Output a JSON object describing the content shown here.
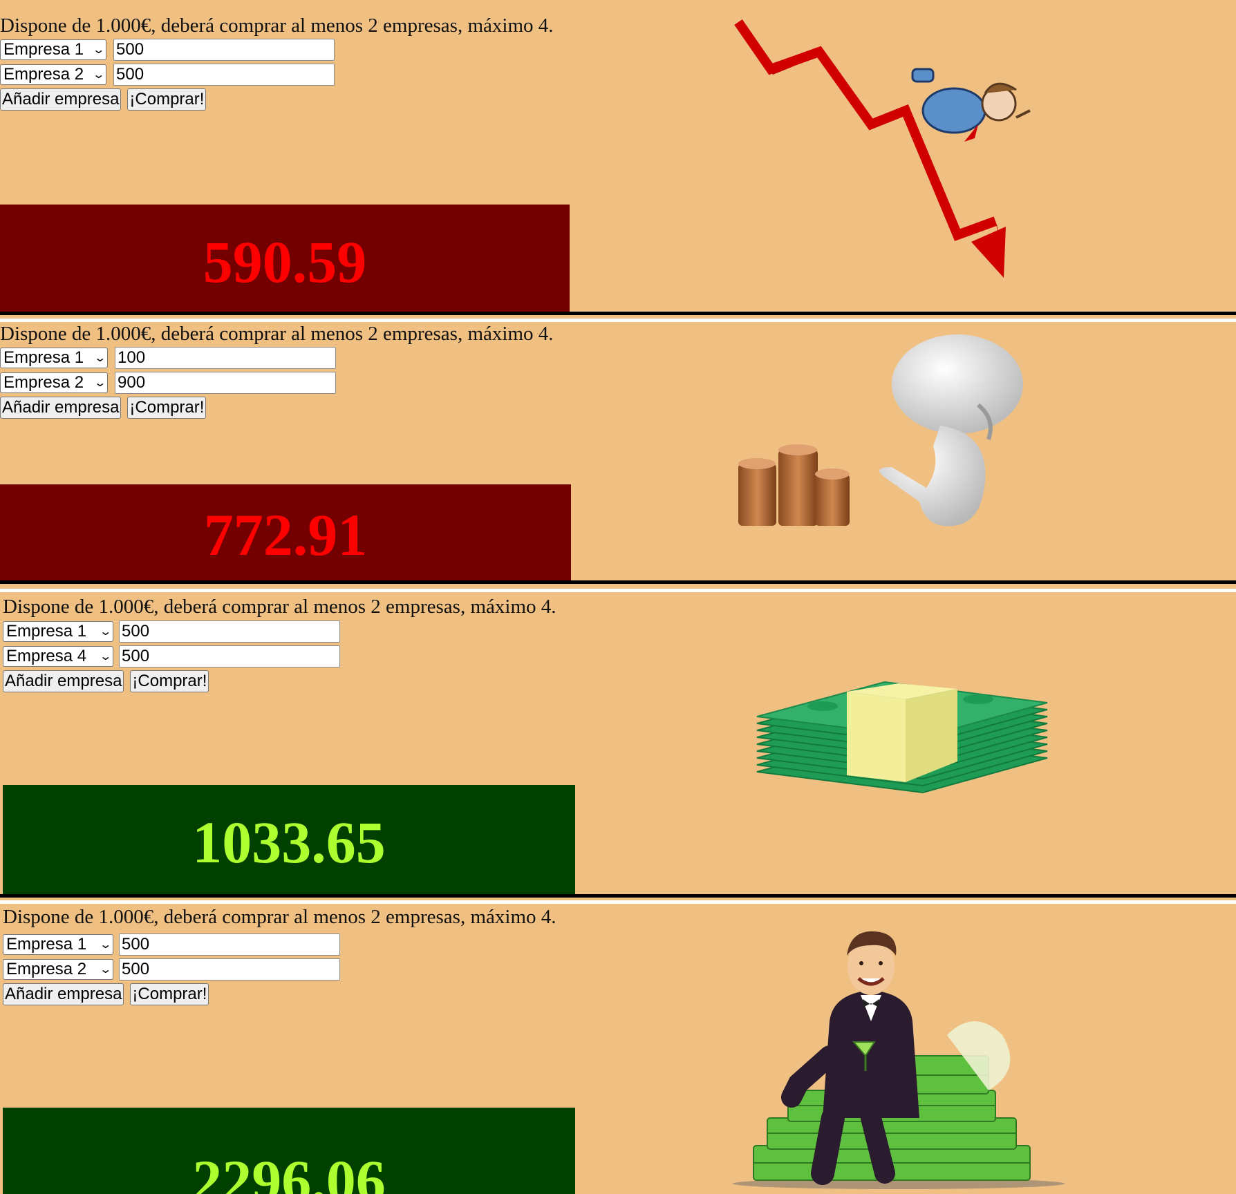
{
  "intro_text": "Dispone de 1.000€, deberá comprar al menos 2 empresas, máximo 4.",
  "add_button_label": "Añadir empresa",
  "buy_button_label": "¡Comprar!",
  "colors": {
    "page_background": "#f0c083",
    "loss_box": "#730000",
    "loss_text": "#ff0000",
    "gain_box": "#004000",
    "gain_text": "#adff2f"
  },
  "panels": [
    {
      "selections": [
        {
          "company": "Empresa 1",
          "amount": "500"
        },
        {
          "company": "Empresa 2",
          "amount": "500"
        }
      ],
      "result": "590.59",
      "outcome": "loss",
      "illustration": "falling-chart-man-icon"
    },
    {
      "selections": [
        {
          "company": "Empresa 1",
          "amount": "100"
        },
        {
          "company": "Empresa 2",
          "amount": "900"
        }
      ],
      "result": "772.91",
      "outcome": "loss",
      "illustration": "coins-thinking-figure-icon"
    },
    {
      "selections": [
        {
          "company": "Empresa 1",
          "amount": "500"
        },
        {
          "company": "Empresa 4",
          "amount": "500"
        }
      ],
      "result": "1033.65",
      "outcome": "gain",
      "illustration": "money-stack-icon"
    },
    {
      "selections": [
        {
          "company": "Empresa 1",
          "amount": "500"
        },
        {
          "company": "Empresa 2",
          "amount": "500"
        }
      ],
      "result": "2296.06",
      "outcome": "gain",
      "illustration": "rich-man-on-money-icon"
    }
  ]
}
